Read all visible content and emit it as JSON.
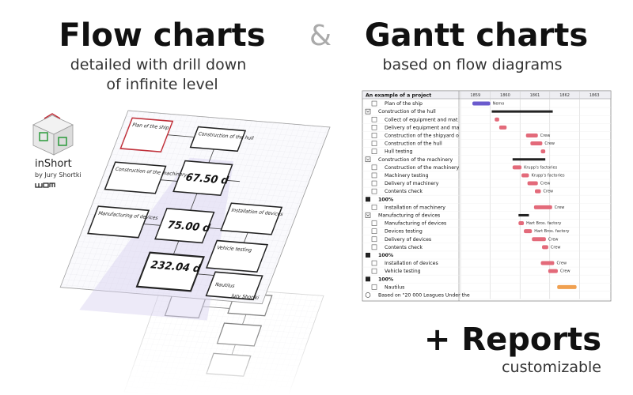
{
  "header": {
    "left_title": "Flow charts",
    "left_subtitle": [
      "detailed with drill down",
      "of infinite level"
    ],
    "ampersand": "&",
    "right_title": "Gantt charts",
    "right_subtitle": "based on flow diagrams"
  },
  "app": {
    "name": "inShort",
    "by": "by Jury Shortki"
  },
  "flow": {
    "nodes": [
      "Plan of the ship",
      "Construction of the hull",
      "Construction of the machinery",
      "Manufacturing of devices",
      "Installation of devices",
      "Vehicle testing",
      "Nautilus"
    ],
    "durations": [
      "67.50 d",
      "75.00 d",
      "232.04 d"
    ],
    "footer": "Jury Shortki"
  },
  "gantt": {
    "title": "An example of a project",
    "years": [
      1859,
      1860,
      1861,
      1862,
      1863
    ],
    "xlim": [
      1859,
      1864
    ],
    "rows": [
      {
        "label": "Plan of the ship",
        "kind": "task",
        "level": 1,
        "start": 1859.4,
        "end": 1860.0,
        "resource": "Nemo",
        "color": "#6a5acd"
      },
      {
        "label": "Construction of the hull",
        "kind": "summary",
        "level": 0,
        "start": 1860.05,
        "end": 1862.1,
        "resource": null,
        "color": "#222222"
      },
      {
        "label": "Collect of equipment and mat",
        "kind": "task",
        "level": 1,
        "start": 1860.15,
        "end": 1860.3,
        "resource": null,
        "color": "#e36a7a"
      },
      {
        "label": "Delivery of equipment and ma",
        "kind": "task",
        "level": 1,
        "start": 1860.3,
        "end": 1860.55,
        "resource": null,
        "color": "#e36a7a"
      },
      {
        "label": "Construction of the shipyard o",
        "kind": "task",
        "level": 1,
        "start": 1861.2,
        "end": 1861.6,
        "resource": "Crew",
        "color": "#e36a7a"
      },
      {
        "label": "Construction of the hull",
        "kind": "task",
        "level": 1,
        "start": 1861.35,
        "end": 1861.75,
        "resource": "Crew",
        "color": "#e36a7a"
      },
      {
        "label": "Hull testing",
        "kind": "task",
        "level": 1,
        "start": 1861.7,
        "end": 1861.85,
        "resource": null,
        "color": "#e36a7a"
      },
      {
        "label": "Construction of the machinery",
        "kind": "summary",
        "level": 0,
        "start": 1860.75,
        "end": 1861.85,
        "resource": null,
        "color": "#222222"
      },
      {
        "label": "Construction of the machinery",
        "kind": "task",
        "level": 1,
        "start": 1860.75,
        "end": 1861.05,
        "resource": "Krupp's factories",
        "color": "#e36a7a"
      },
      {
        "label": "Machinery testing",
        "kind": "task",
        "level": 1,
        "start": 1861.05,
        "end": 1861.3,
        "resource": "Krupp's factories",
        "color": "#e36a7a"
      },
      {
        "label": "Delivery of machinery",
        "kind": "task",
        "level": 1,
        "start": 1861.25,
        "end": 1861.6,
        "resource": "Crew",
        "color": "#e36a7a"
      },
      {
        "label": "Contents check",
        "kind": "task",
        "level": 1,
        "start": 1861.5,
        "end": 1861.7,
        "resource": "Crew",
        "color": "#e36a7a"
      },
      {
        "label": "100%",
        "kind": "result",
        "level": 0,
        "start": null,
        "end": null,
        "resource": null,
        "color": null
      },
      {
        "label": "Installation of machinery",
        "kind": "task",
        "level": 1,
        "start": 1861.47,
        "end": 1862.08,
        "resource": "Crew",
        "color": "#e36a7a"
      },
      {
        "label": "Manufacturing of devices",
        "kind": "summary",
        "level": 0,
        "start": 1860.95,
        "end": 1861.3,
        "resource": null,
        "color": "#222222"
      },
      {
        "label": "Manufacturing of devices",
        "kind": "task",
        "level": 1,
        "start": 1860.95,
        "end": 1861.13,
        "resource": "Hart Bros. factory",
        "color": "#e36a7a"
      },
      {
        "label": "Devices testing",
        "kind": "task",
        "level": 1,
        "start": 1861.13,
        "end": 1861.4,
        "resource": "Hart Bros. factory",
        "color": "#e36a7a"
      },
      {
        "label": "Delivery of devices",
        "kind": "task",
        "level": 1,
        "start": 1861.4,
        "end": 1861.87,
        "resource": "Crew",
        "color": "#e36a7a"
      },
      {
        "label": "Contents check",
        "kind": "task",
        "level": 1,
        "start": 1861.74,
        "end": 1861.95,
        "resource": "Crew",
        "color": "#e36a7a"
      },
      {
        "label": "100%",
        "kind": "result",
        "level": 0,
        "start": null,
        "end": null,
        "resource": null,
        "color": null
      },
      {
        "label": "Installation of devices",
        "kind": "task",
        "level": 1,
        "start": 1861.7,
        "end": 1862.15,
        "resource": "Crew",
        "color": "#e36a7a"
      },
      {
        "label": "Vehicle testing",
        "kind": "task",
        "level": 1,
        "start": 1861.95,
        "end": 1862.27,
        "resource": "Crew",
        "color": "#e36a7a"
      },
      {
        "label": "100%",
        "kind": "result",
        "level": 0,
        "start": null,
        "end": null,
        "resource": null,
        "color": null
      },
      {
        "label": "Nautilus",
        "kind": "task",
        "level": 1,
        "start": 1862.25,
        "end": 1862.9,
        "resource": null,
        "color": "#f0a050"
      },
      {
        "label": "Based on \"20 000 Leagues Under the",
        "kind": "note",
        "level": 0,
        "start": null,
        "end": null,
        "resource": null,
        "color": null
      }
    ]
  },
  "reports": {
    "title": "+ Reports",
    "subtitle": "customizable"
  }
}
